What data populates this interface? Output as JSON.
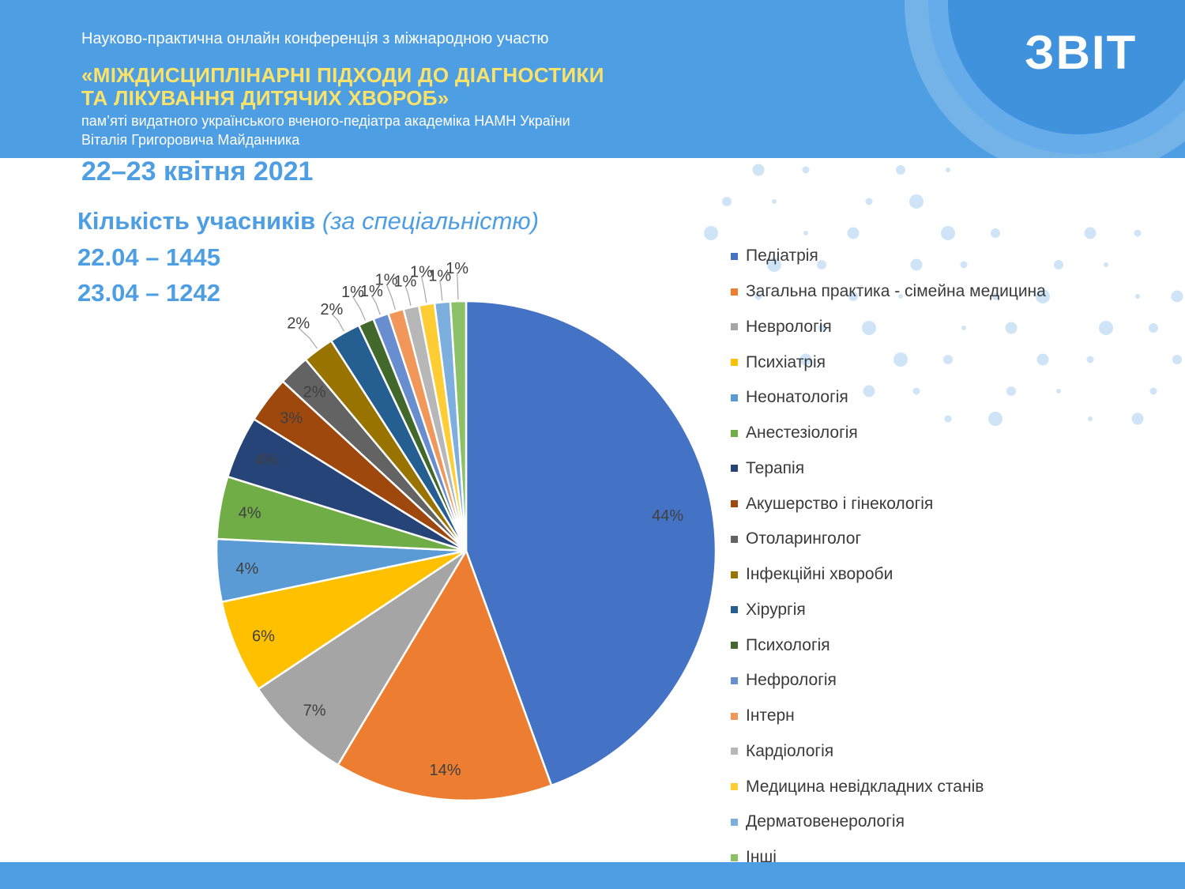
{
  "header": {
    "line1": "Науково-практична онлайн конференція з міжнародною участю",
    "line2": "«МІЖДИСЦИПЛІНАРНІ ПІДХОДИ ДО ДІАГНОСТИКИ",
    "line3": "ТА ЛІКУВАННЯ ДИТЯЧИХ ХВОРОБ»",
    "line4": "пам’яті видатного українського вченого-педіатра академіка НАМН України",
    "line5": "Віталія Григоровича Майданника",
    "report": "ЗВІТ",
    "date": "22–23 квітня 2021"
  },
  "stats": {
    "heading_bold": "Кількість учасників",
    "heading_italic": "(за спеціальністю)",
    "day1": "22.04 – 1445",
    "day2": "23.04 – 1242"
  },
  "colors": {
    "banner": "#4d9ee2",
    "title_yellow": "#fbe36a"
  },
  "chart_data": {
    "type": "pie",
    "categories": [
      "Педіатрія",
      "Загальна практика - сімейна медицина",
      "Неврологія",
      "Психіатрія",
      "Неонатологія",
      "Анестезіологія",
      "Терапія",
      "Акушерство і гінекологія",
      "Отоларинголог",
      "Інфекційні хвороби",
      "Хірургія",
      "Психологія",
      "Нефрологія",
      "Інтерн",
      "Кардіологія",
      "Медицина невідкладних станів",
      "Дерматовенерологія",
      "Інші"
    ],
    "values": [
      44,
      14,
      7,
      6,
      4,
      4,
      4,
      3,
      2,
      2,
      2,
      1,
      1,
      1,
      1,
      1,
      1,
      1
    ],
    "labels": [
      "44%",
      "14%",
      "7%",
      "6%",
      "4%",
      "4%",
      "4%",
      "3%",
      "2%",
      "2%",
      "2%",
      "1%",
      "1%",
      "1%",
      "1%",
      "1%",
      "1%",
      "1%"
    ],
    "colors": [
      "#4472c4",
      "#ed7d31",
      "#a5a5a5",
      "#ffc000",
      "#5b9bd5",
      "#70ad47",
      "#264478",
      "#9e480e",
      "#636363",
      "#997300",
      "#255e91",
      "#43682b",
      "#698ed0",
      "#f1975a",
      "#b7b7b7",
      "#ffcd33",
      "#7cafdd",
      "#8cc168"
    ],
    "legend_position": "right"
  }
}
